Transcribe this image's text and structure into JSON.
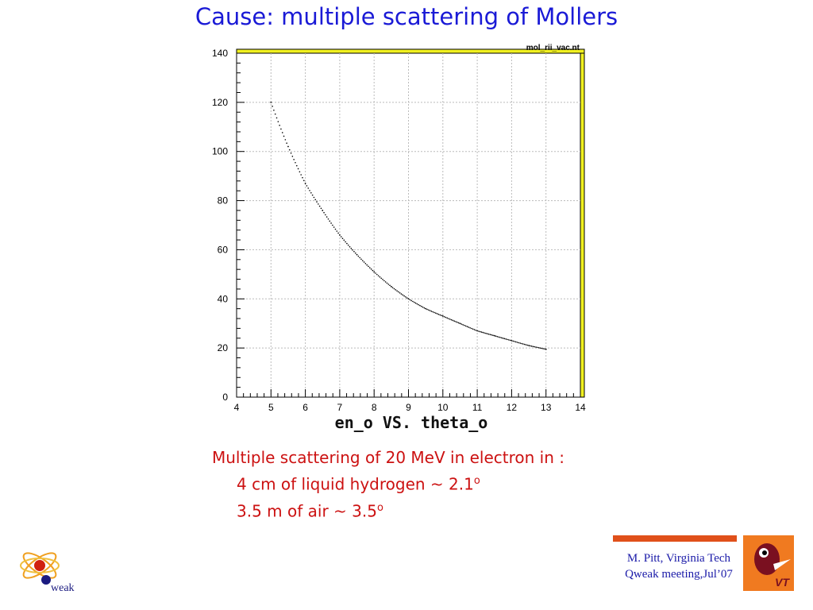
{
  "slide": {
    "title": "Cause: multiple scattering of Mollers"
  },
  "chart_data": {
    "type": "scatter",
    "title": "en_o VS. theta_o",
    "stats_label": "mol_rii_vac.nt",
    "xlabel": "",
    "ylabel": "",
    "xlim": [
      4,
      14
    ],
    "ylim": [
      0,
      140
    ],
    "x_ticks": [
      4,
      5,
      6,
      7,
      8,
      9,
      10,
      11,
      12,
      13,
      14
    ],
    "y_ticks": [
      0,
      20,
      40,
      60,
      80,
      100,
      120,
      140
    ],
    "grid": true,
    "series": [
      {
        "color": "#000000",
        "x": [
          5,
          5.5,
          6,
          6.5,
          7,
          7.5,
          8,
          8.5,
          9,
          9.5,
          10,
          10.5,
          11,
          11.5,
          12,
          12.5,
          13
        ],
        "y": [
          120,
          102,
          87,
          76,
          66,
          58,
          51,
          45,
          40,
          36,
          33,
          30,
          27,
          25,
          23,
          21,
          19.5
        ]
      }
    ],
    "frame_color": "#f0f020"
  },
  "caption": {
    "line1": "Multiple scattering of 20 MeV in electron in :",
    "line2": "4 cm of liquid hydrogen ~ 2.1",
    "line3": "3.5 m of air ~ 3.5",
    "degree": "o"
  },
  "footer": {
    "author": "M. Pitt, Virginia Tech",
    "meeting": "Qweak meeting,Jul’07",
    "accent_color": "#e0501a"
  },
  "logos": {
    "left": "qweak-logo",
    "left_text": "weak",
    "right": "vt-logo",
    "right_text": "VT"
  }
}
